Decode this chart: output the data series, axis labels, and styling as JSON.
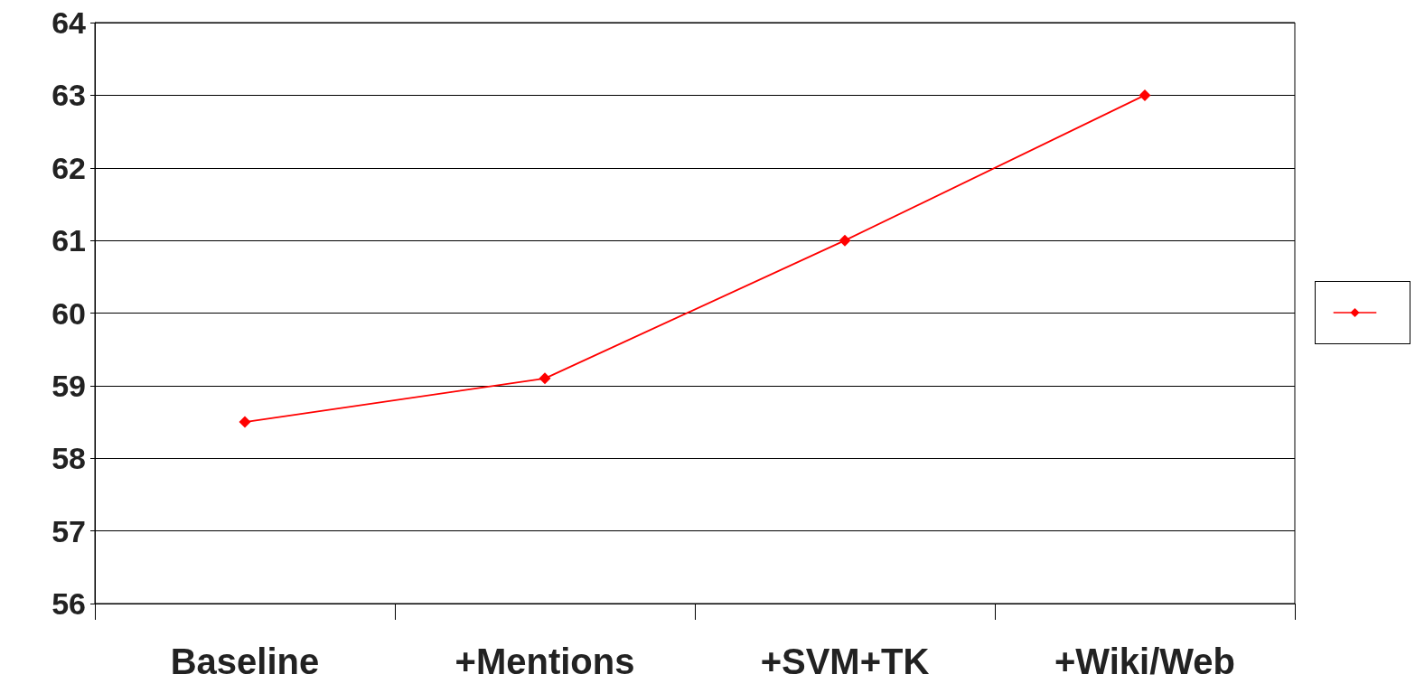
{
  "chart_data": {
    "type": "line",
    "categories": [
      "Baseline",
      "+Mentions",
      "+SVM+TK",
      "+Wiki/Web"
    ],
    "series": [
      {
        "color": "#ff0000",
        "values": [
          58.5,
          59.1,
          61,
          63
        ]
      }
    ],
    "ylim": [
      56,
      64
    ],
    "yticks": [
      56,
      57,
      58,
      59,
      60,
      61,
      62,
      63,
      64
    ],
    "grid": "y",
    "marker": "diamond",
    "line_style": "solid"
  }
}
